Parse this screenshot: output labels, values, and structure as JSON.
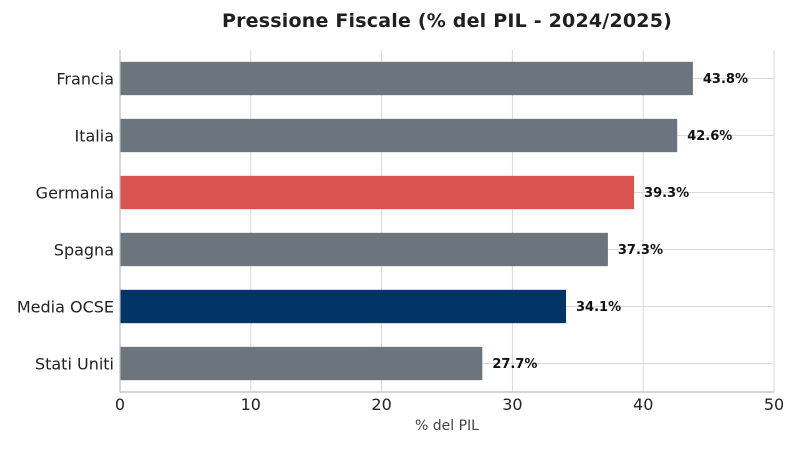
{
  "chart_data": {
    "type": "bar",
    "orientation": "horizontal",
    "title": "Pressione Fiscale (% del PIL - 2024/2025)",
    "xlabel": "% del PIL",
    "ylabel": "",
    "xlim": [
      0,
      50
    ],
    "x_ticks": [
      "0",
      "10",
      "20",
      "30",
      "40",
      "50"
    ],
    "grid": true,
    "legend": "none",
    "categories": [
      "Francia",
      "Italia",
      "Germania",
      "Spagna",
      "Media OCSE",
      "Stati Uniti"
    ],
    "values": [
      43.8,
      42.6,
      39.3,
      37.3,
      34.1,
      27.7
    ],
    "value_labels": [
      "43.8%",
      "42.6%",
      "39.3%",
      "37.3%",
      "34.1%",
      "27.7%"
    ],
    "colors": [
      "#6c757d",
      "#6c757d",
      "#d9534f",
      "#6c757d",
      "#003366",
      "#6c757d"
    ]
  }
}
